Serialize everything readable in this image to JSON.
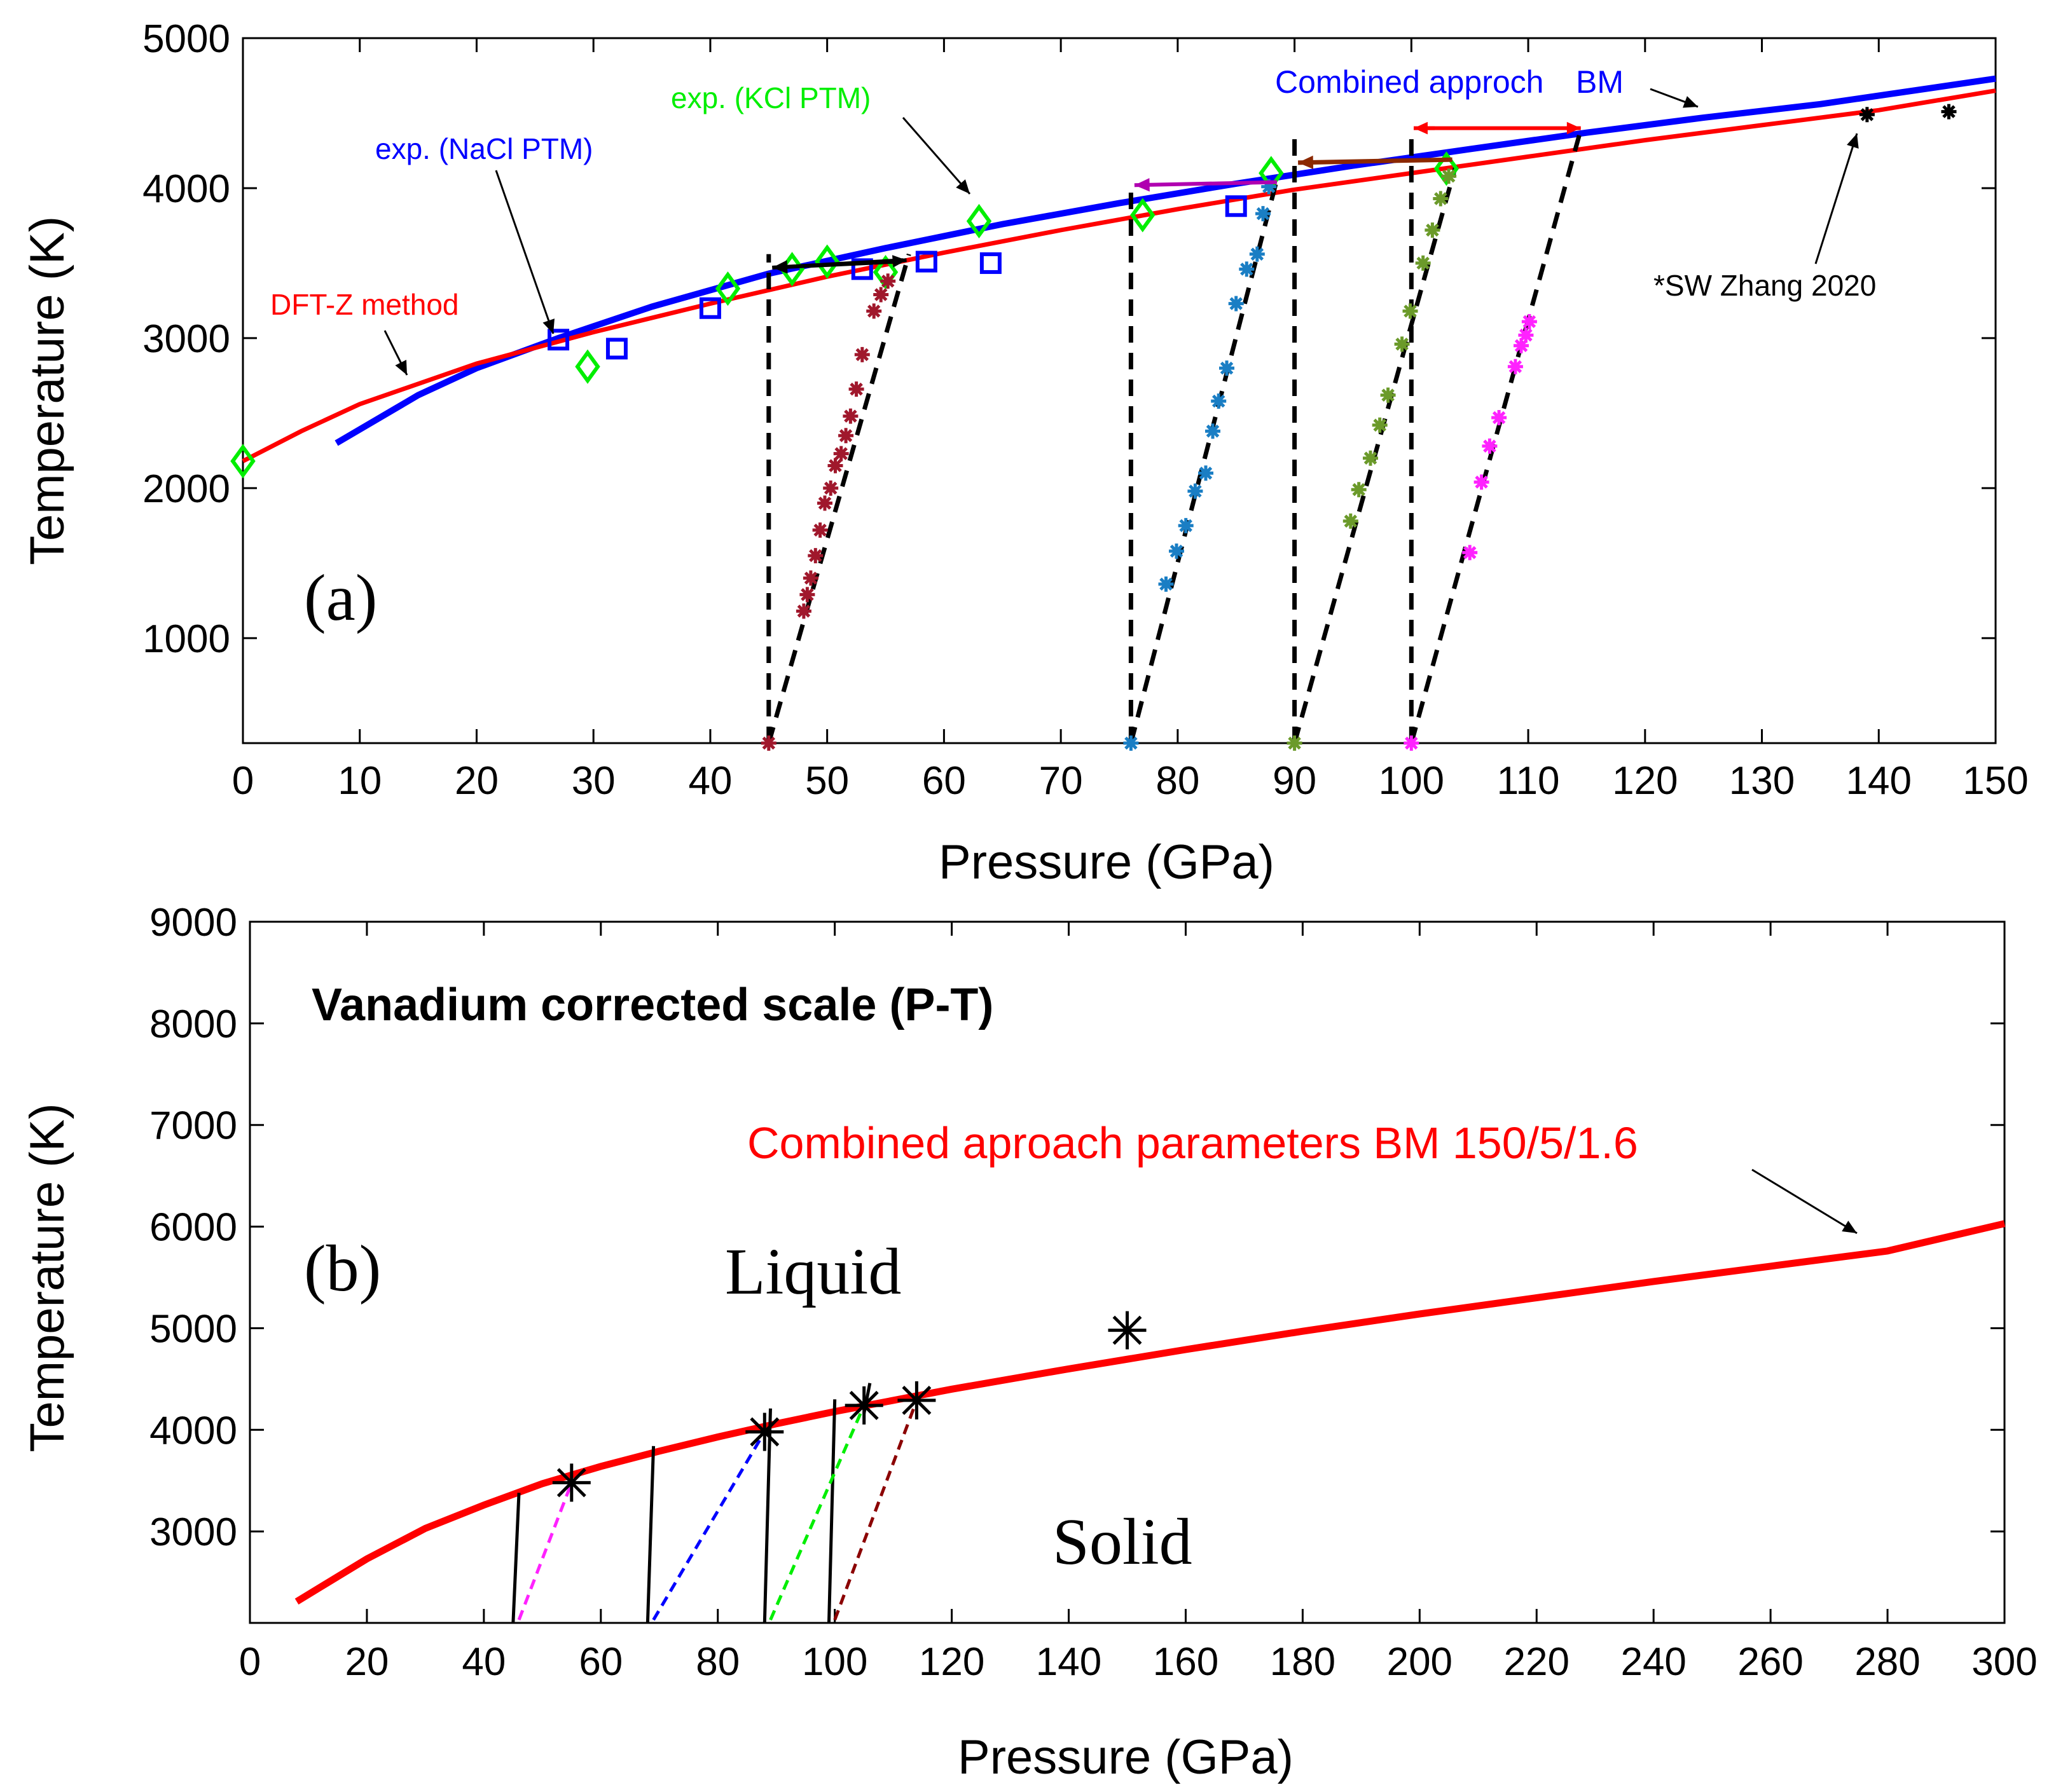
{
  "chart_data": [
    {
      "id": "a",
      "type": "scatter",
      "panel_label": "(a)",
      "xlabel": "Pressure (GPa)",
      "ylabel": "Temperature (K)",
      "xlim": [
        0,
        150
      ],
      "ylim": [
        300,
        5000
      ],
      "xticks": [
        0,
        10,
        20,
        30,
        40,
        50,
        60,
        70,
        80,
        90,
        100,
        110,
        120,
        130,
        140,
        150
      ],
      "yticks": [
        1000,
        2000,
        3000,
        4000,
        5000
      ],
      "colors": {
        "blue": "#0000ff",
        "red": "#ff0000",
        "green": "#00ee00",
        "darkred": "#a0182c",
        "skyblue": "#1a7ec4",
        "olive": "#6b9a2a",
        "magenta": "#ff22ff",
        "purple": "#b000b0",
        "brown": "#8b2800"
      },
      "curves": [
        {
          "name": "Combined approch BM",
          "color": "#0000ff",
          "x": [
            8,
            15,
            20,
            27,
            35,
            45,
            55,
            65,
            75,
            85,
            95,
            105,
            115,
            125,
            135,
            150
          ],
          "y": [
            2300,
            2620,
            2800,
            3000,
            3210,
            3430,
            3600,
            3760,
            3900,
            4030,
            4150,
            4260,
            4370,
            4470,
            4560,
            4730
          ]
        },
        {
          "name": "DFT-Z method",
          "color": "#ff0000",
          "x": [
            0,
            5,
            10,
            20,
            30,
            40,
            50,
            60,
            70,
            80,
            90,
            100,
            110,
            120,
            130,
            140,
            150
          ],
          "y": [
            2180,
            2380,
            2560,
            2830,
            3040,
            3230,
            3410,
            3570,
            3720,
            3860,
            3990,
            4100,
            4210,
            4320,
            4420,
            4520,
            4650
          ]
        }
      ],
      "series": [
        {
          "name": "exp. (NaCl PTM)",
          "marker": "square",
          "color": "#0000ff",
          "x": [
            27,
            32,
            40,
            53,
            58.5,
            64,
            85
          ],
          "y": [
            2990,
            2930,
            3200,
            3460,
            3510,
            3500,
            3880
          ]
        },
        {
          "name": "exp. (KCl PTM)",
          "marker": "diamond",
          "color": "#00ee00",
          "x": [
            0,
            29.5,
            41.5,
            47,
            50,
            55,
            63,
            77,
            88,
            103
          ],
          "y": [
            2180,
            2810,
            3330,
            3460,
            3510,
            3440,
            3780,
            3820,
            4100,
            4130
          ]
        },
        {
          "name": "isotherm 45 GPa",
          "marker": "star",
          "color": "#a0182c",
          "x": [
            45,
            48,
            48.3,
            48.6,
            49,
            49.4,
            49.8,
            50.3,
            50.7,
            51.2,
            51.6,
            52,
            52.5,
            53,
            54,
            54.6,
            55.2
          ],
          "y": [
            300,
            1180,
            1290,
            1400,
            1550,
            1720,
            1900,
            2000,
            2150,
            2230,
            2350,
            2480,
            2660,
            2890,
            3180,
            3290,
            3380
          ]
        },
        {
          "name": "isotherm 76 GPa",
          "marker": "star",
          "color": "#1a7ec4",
          "x": [
            76,
            79,
            79.9,
            80.7,
            81.5,
            82.4,
            83,
            83.5,
            84.2,
            85,
            85.9,
            86.8,
            87.3,
            87.8
          ],
          "y": [
            300,
            1360,
            1580,
            1750,
            1980,
            2100,
            2380,
            2580,
            2800,
            3230,
            3460,
            3560,
            3830,
            4010
          ]
        },
        {
          "name": "isotherm 90 GPa",
          "marker": "star",
          "color": "#6b9a2a",
          "x": [
            90,
            94.8,
            95.5,
            96.5,
            97.3,
            98,
            99.2,
            99.9,
            101,
            101.8,
            102.5,
            103.2
          ],
          "y": [
            300,
            1780,
            1990,
            2200,
            2420,
            2620,
            2960,
            3180,
            3500,
            3720,
            3930,
            4080
          ]
        },
        {
          "name": "isotherm 100 GPa",
          "marker": "star",
          "color": "#ff22ff",
          "x": [
            100,
            105,
            106,
            106.7,
            107.5,
            108.9,
            109.4,
            109.8,
            110.1
          ],
          "y": [
            300,
            1570,
            2040,
            2280,
            2470,
            2810,
            2950,
            3020,
            3110
          ]
        },
        {
          "name": "*SW Zhang 2020",
          "marker": "star",
          "color": "#000000",
          "x": [
            139,
            146
          ],
          "y": [
            4490,
            4510
          ]
        }
      ],
      "annotations": {
        "nacl": "exp. (NaCl PTM)",
        "kcl": "exp. (KCl PTM)",
        "combined": "Combined approch",
        "bm": "BM",
        "dftz": "DFT-Z method",
        "zhang": "*SW Zhang 2020"
      }
    },
    {
      "id": "b",
      "type": "line",
      "panel_label": "(b)",
      "title": "Vanadium corrected scale (P-T)",
      "curve_label": "Combined aproach parameters  BM 150/5/1.6",
      "region_liquid": "Liquid",
      "region_solid": "Solid",
      "xlabel": "Pressure  (GPa)",
      "ylabel": "Temperature  (K)",
      "xlim": [
        0,
        300
      ],
      "ylim": [
        2100,
        9000
      ],
      "xticks": [
        0,
        20,
        40,
        60,
        80,
        100,
        120,
        140,
        160,
        180,
        200,
        220,
        240,
        260,
        280,
        300
      ],
      "yticks": [
        3000,
        4000,
        5000,
        6000,
        7000,
        8000,
        9000
      ],
      "curve": {
        "color": "#ff0000",
        "x": [
          8,
          20,
          30,
          40,
          50,
          60,
          70,
          80,
          90,
          100,
          120,
          140,
          160,
          180,
          200,
          220,
          240,
          260,
          280,
          300
        ],
        "y": [
          2310,
          2730,
          3030,
          3260,
          3470,
          3640,
          3790,
          3930,
          4060,
          4180,
          4400,
          4600,
          4790,
          4970,
          5140,
          5300,
          5460,
          5610,
          5760,
          6030
        ]
      },
      "stars": {
        "x": [
          55,
          88,
          105,
          114,
          150
        ],
        "y": [
          3480,
          3980,
          4240,
          4290,
          4980
        ]
      },
      "segments_black": [
        {
          "x": [
            45,
            46
          ],
          "y": [
            2100,
            3380
          ]
        },
        {
          "x": [
            68,
            69
          ],
          "y": [
            2100,
            3840
          ]
        },
        {
          "x": [
            88,
            89
          ],
          "y": [
            2100,
            4210
          ]
        },
        {
          "x": [
            99,
            100
          ],
          "y": [
            2100,
            4300
          ]
        },
        {
          "x": [
            105,
            106
          ],
          "y": [
            4160,
            4460
          ]
        }
      ],
      "segments_dashed": [
        {
          "color": "#ff22ff",
          "x": [
            46,
            55
          ],
          "y": [
            2130,
            3480
          ]
        },
        {
          "color": "#0000ff",
          "x": [
            69,
            88
          ],
          "y": [
            2130,
            3980
          ]
        },
        {
          "color": "#00ee00",
          "x": [
            89,
            105
          ],
          "y": [
            2130,
            4240
          ]
        },
        {
          "color": "#8b0000",
          "x": [
            100,
            114
          ],
          "y": [
            2130,
            4290
          ]
        }
      ]
    }
  ]
}
